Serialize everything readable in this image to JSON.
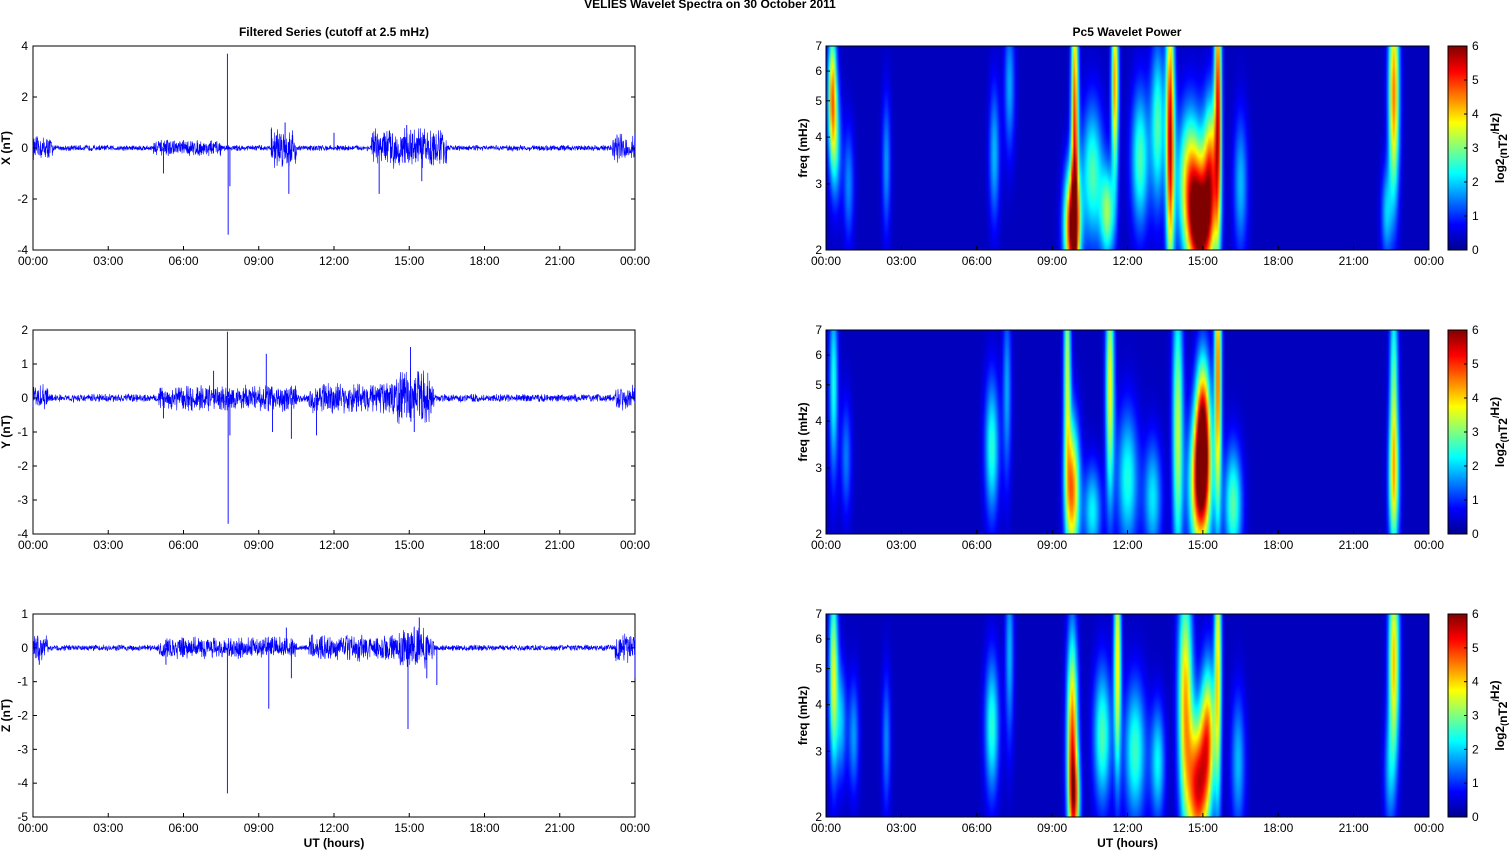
{
  "figure": {
    "title": "VELIES Wavelet Spectra on 30 October   2011",
    "left_title": "Filtered Series (cutoff at 2.5 mHz)",
    "right_title": "Pc5 Wavelet Power",
    "xlabel": "UT (hours)"
  },
  "chart_data": [
    {
      "type": "line",
      "title": "Filtered Series (cutoff at 2.5 mHz)",
      "xlabel": "",
      "ylabel": "X (nT)",
      "x_ticks": [
        "00:00",
        "03:00",
        "06:00",
        "09:00",
        "12:00",
        "15:00",
        "18:00",
        "21:00",
        "00:00"
      ],
      "xlim": [
        0,
        24
      ],
      "ylim": [
        -4,
        4
      ],
      "y_ticks": [
        -4,
        -2,
        0,
        2,
        4
      ],
      "color": "#0000ff",
      "noise_level": 0.09,
      "activity": [
        {
          "t0": 0.0,
          "t1": 0.8,
          "amp": 0.35
        },
        {
          "t0": 4.8,
          "t1": 7.5,
          "amp": 0.25
        },
        {
          "t0": 9.5,
          "t1": 10.5,
          "amp": 0.6
        },
        {
          "t0": 13.5,
          "t1": 16.5,
          "amp": 0.6
        },
        {
          "t0": 23.1,
          "t1": 24.0,
          "amp": 0.45
        }
      ],
      "spikes": [
        {
          "x": 7.75,
          "y": 3.7
        },
        {
          "x": 7.78,
          "y": -3.4
        },
        {
          "x": 7.85,
          "y": -1.5
        },
        {
          "x": 10.2,
          "y": -1.8
        },
        {
          "x": 10.05,
          "y": 1.0
        },
        {
          "x": 13.8,
          "y": -1.8
        },
        {
          "x": 14.9,
          "y": 0.9
        },
        {
          "x": 15.5,
          "y": -1.3
        },
        {
          "x": 5.2,
          "y": -1.0
        },
        {
          "x": 9.5,
          "y": 0.75
        },
        {
          "x": 12.0,
          "y": 0.6
        }
      ]
    },
    {
      "type": "heatmap",
      "title": "Pc5 Wavelet Power",
      "xlabel": "",
      "ylabel": "freq (mHz)",
      "x_ticks": [
        "00:00",
        "03:00",
        "06:00",
        "09:00",
        "12:00",
        "15:00",
        "18:00",
        "21:00",
        "00:00"
      ],
      "xlim": [
        0,
        24
      ],
      "ylim": [
        2,
        7
      ],
      "y_scale": "log",
      "y_ticks": [
        2,
        3,
        4,
        5,
        6,
        7
      ],
      "colorbar_label": "log2(nT2/Hz)",
      "colorbar_ticks": [
        0,
        1,
        2,
        3,
        4,
        5,
        6
      ],
      "clim": [
        0,
        6
      ],
      "blobs": [
        {
          "t": 0.25,
          "f": 5.2,
          "w": 0.12,
          "fw": 0.28,
          "v": 4.2
        },
        {
          "t": 0.4,
          "f": 3.8,
          "w": 0.15,
          "fw": 0.25,
          "v": 1.8
        },
        {
          "t": 0.9,
          "f": 3.0,
          "w": 0.15,
          "fw": 0.25,
          "v": 1.3
        },
        {
          "t": 2.4,
          "f": 3.4,
          "w": 0.12,
          "fw": 0.3,
          "v": 1.4
        },
        {
          "t": 6.7,
          "f": 3.6,
          "w": 0.15,
          "fw": 0.3,
          "v": 1.6
        },
        {
          "t": 7.3,
          "f": 5.5,
          "w": 0.15,
          "fw": 0.3,
          "v": 1.5
        },
        {
          "t": 9.8,
          "f": 2.3,
          "w": 0.22,
          "fw": 0.25,
          "v": 6.0
        },
        {
          "t": 9.9,
          "f": 4.5,
          "w": 0.1,
          "fw": 0.6,
          "v": 4.8
        },
        {
          "t": 10.6,
          "f": 3.2,
          "w": 0.3,
          "fw": 0.3,
          "v": 2.5
        },
        {
          "t": 11.2,
          "f": 2.5,
          "w": 0.2,
          "fw": 0.2,
          "v": 2.8
        },
        {
          "t": 11.5,
          "f": 5.5,
          "w": 0.1,
          "fw": 0.4,
          "v": 4.3
        },
        {
          "t": 12.5,
          "f": 3.5,
          "w": 0.25,
          "fw": 0.3,
          "v": 2.5
        },
        {
          "t": 13.2,
          "f": 4.3,
          "w": 0.2,
          "fw": 0.35,
          "v": 2.5
        },
        {
          "t": 13.7,
          "f": 4.0,
          "w": 0.12,
          "fw": 0.6,
          "v": 5.5
        },
        {
          "t": 14.5,
          "f": 3.1,
          "w": 0.35,
          "fw": 0.3,
          "v": 3.8
        },
        {
          "t": 14.9,
          "f": 2.3,
          "w": 0.35,
          "fw": 0.25,
          "v": 5.8
        },
        {
          "t": 15.3,
          "f": 3.3,
          "w": 0.2,
          "fw": 0.3,
          "v": 4.0
        },
        {
          "t": 15.6,
          "f": 5.0,
          "w": 0.1,
          "fw": 0.6,
          "v": 5.0
        },
        {
          "t": 16.5,
          "f": 3.0,
          "w": 0.2,
          "fw": 0.3,
          "v": 1.6
        },
        {
          "t": 22.6,
          "f": 5.2,
          "w": 0.15,
          "fw": 0.45,
          "v": 4.5
        },
        {
          "t": 22.3,
          "f": 2.5,
          "w": 0.15,
          "fw": 0.2,
          "v": 1.6
        }
      ]
    },
    {
      "type": "line",
      "title": "",
      "xlabel": "",
      "ylabel": "Y (nT)",
      "x_ticks": [
        "00:00",
        "03:00",
        "06:00",
        "09:00",
        "12:00",
        "15:00",
        "18:00",
        "21:00",
        "00:00"
      ],
      "xlim": [
        0,
        24
      ],
      "ylim": [
        -4,
        2
      ],
      "y_ticks": [
        -4,
        -3,
        -2,
        -1,
        0,
        1,
        2
      ],
      "color": "#0000ff",
      "noise_level": 0.09,
      "activity": [
        {
          "t0": 0.0,
          "t1": 0.6,
          "amp": 0.3
        },
        {
          "t0": 5.0,
          "t1": 10.5,
          "amp": 0.3
        },
        {
          "t0": 11.0,
          "t1": 16.0,
          "amp": 0.35
        },
        {
          "t0": 14.5,
          "t1": 15.8,
          "amp": 0.7
        },
        {
          "t0": 23.2,
          "t1": 24.0,
          "amp": 0.3
        }
      ],
      "spikes": [
        {
          "x": 7.75,
          "y": 1.95
        },
        {
          "x": 7.78,
          "y": -3.7
        },
        {
          "x": 7.85,
          "y": -1.1
        },
        {
          "x": 9.3,
          "y": 1.3
        },
        {
          "x": 9.55,
          "y": -1.0
        },
        {
          "x": 10.3,
          "y": -1.2
        },
        {
          "x": 11.3,
          "y": -1.1
        },
        {
          "x": 15.05,
          "y": 1.5
        },
        {
          "x": 15.2,
          "y": -1.0
        },
        {
          "x": 5.2,
          "y": -0.6
        },
        {
          "x": 7.2,
          "y": 0.8
        }
      ]
    },
    {
      "type": "heatmap",
      "title": "",
      "xlabel": "",
      "ylabel": "freq (mHz)",
      "x_ticks": [
        "00:00",
        "03:00",
        "06:00",
        "09:00",
        "12:00",
        "15:00",
        "18:00",
        "21:00",
        "00:00"
      ],
      "xlim": [
        0,
        24
      ],
      "ylim": [
        2,
        7
      ],
      "y_scale": "log",
      "y_ticks": [
        2,
        3,
        4,
        5,
        6,
        7
      ],
      "colorbar_label": "log2(nT2/Hz)",
      "colorbar_ticks": [
        0,
        1,
        2,
        3,
        4,
        5,
        6
      ],
      "clim": [
        0,
        6
      ],
      "blobs": [
        {
          "t": 0.3,
          "f": 5.0,
          "w": 0.12,
          "fw": 0.4,
          "v": 2.2
        },
        {
          "t": 0.8,
          "f": 3.2,
          "w": 0.15,
          "fw": 0.25,
          "v": 1.2
        },
        {
          "t": 6.6,
          "f": 3.4,
          "w": 0.2,
          "fw": 0.3,
          "v": 2.3
        },
        {
          "t": 7.2,
          "f": 4.8,
          "w": 0.12,
          "fw": 0.4,
          "v": 1.5
        },
        {
          "t": 9.8,
          "f": 2.6,
          "w": 0.2,
          "fw": 0.3,
          "v": 4.5
        },
        {
          "t": 9.6,
          "f": 5.5,
          "w": 0.1,
          "fw": 0.5,
          "v": 3.2
        },
        {
          "t": 10.6,
          "f": 2.3,
          "w": 0.25,
          "fw": 0.2,
          "v": 2.0
        },
        {
          "t": 11.3,
          "f": 5.0,
          "w": 0.12,
          "fw": 0.5,
          "v": 3.6
        },
        {
          "t": 12.0,
          "f": 2.8,
          "w": 0.3,
          "fw": 0.3,
          "v": 2.2
        },
        {
          "t": 13.0,
          "f": 2.5,
          "w": 0.25,
          "fw": 0.25,
          "v": 1.9
        },
        {
          "t": 14.0,
          "f": 3.8,
          "w": 0.15,
          "fw": 0.6,
          "v": 3.2
        },
        {
          "t": 14.9,
          "f": 2.7,
          "w": 0.3,
          "fw": 0.3,
          "v": 5.5
        },
        {
          "t": 15.0,
          "f": 3.9,
          "w": 0.2,
          "fw": 0.3,
          "v": 4.8
        },
        {
          "t": 15.6,
          "f": 5.3,
          "w": 0.1,
          "fw": 0.6,
          "v": 4.6
        },
        {
          "t": 16.2,
          "f": 2.4,
          "w": 0.25,
          "fw": 0.25,
          "v": 2.6
        },
        {
          "t": 22.6,
          "f": 4.8,
          "w": 0.12,
          "fw": 0.5,
          "v": 2.6
        },
        {
          "t": 22.6,
          "f": 2.7,
          "w": 0.15,
          "fw": 0.3,
          "v": 2.8
        }
      ]
    },
    {
      "type": "line",
      "title": "",
      "xlabel": "UT (hours)",
      "ylabel": "Z (nT)",
      "x_ticks": [
        "00:00",
        "03:00",
        "06:00",
        "09:00",
        "12:00",
        "15:00",
        "18:00",
        "21:00",
        "00:00"
      ],
      "xlim": [
        0,
        24
      ],
      "ylim": [
        -5,
        1
      ],
      "y_ticks": [
        -5,
        -4,
        -3,
        -2,
        -1,
        0,
        1
      ],
      "color": "#0000ff",
      "noise_level": 0.07,
      "activity": [
        {
          "t0": 0.0,
          "t1": 0.6,
          "amp": 0.3
        },
        {
          "t0": 5.0,
          "t1": 10.5,
          "amp": 0.25
        },
        {
          "t0": 11.0,
          "t1": 16.0,
          "amp": 0.3
        },
        {
          "t0": 14.6,
          "t1": 15.8,
          "amp": 0.5
        },
        {
          "t0": 23.2,
          "t1": 24.0,
          "amp": 0.35
        }
      ],
      "spikes": [
        {
          "x": 7.75,
          "y": -4.3
        },
        {
          "x": 9.4,
          "y": -1.8
        },
        {
          "x": 10.1,
          "y": 0.6
        },
        {
          "x": 10.3,
          "y": -0.9
        },
        {
          "x": 14.95,
          "y": -2.4
        },
        {
          "x": 15.4,
          "y": 0.9
        },
        {
          "x": 16.1,
          "y": -1.1
        },
        {
          "x": 15.7,
          "y": -0.9
        },
        {
          "x": 24.0,
          "y": -0.9
        },
        {
          "x": 0.25,
          "y": -0.5
        },
        {
          "x": 5.3,
          "y": -0.5
        }
      ]
    },
    {
      "type": "heatmap",
      "title": "",
      "xlabel": "UT (hours)",
      "ylabel": "freq (mHz)",
      "x_ticks": [
        "00:00",
        "03:00",
        "06:00",
        "09:00",
        "12:00",
        "15:00",
        "18:00",
        "21:00",
        "00:00"
      ],
      "xlim": [
        0,
        24
      ],
      "ylim": [
        2,
        7
      ],
      "y_scale": "log",
      "y_ticks": [
        2,
        3,
        4,
        5,
        6,
        7
      ],
      "colorbar_label": "log2(nT2/Hz)",
      "colorbar_ticks": [
        0,
        1,
        2,
        3,
        4,
        5,
        6
      ],
      "clim": [
        0,
        6
      ],
      "blobs": [
        {
          "t": 0.3,
          "f": 4.8,
          "w": 0.12,
          "fw": 0.4,
          "v": 3.5
        },
        {
          "t": 0.6,
          "f": 3.6,
          "w": 0.15,
          "fw": 0.25,
          "v": 1.6
        },
        {
          "t": 1.1,
          "f": 3.3,
          "w": 0.15,
          "fw": 0.25,
          "v": 1.4
        },
        {
          "t": 2.4,
          "f": 3.2,
          "w": 0.12,
          "fw": 0.3,
          "v": 1.3
        },
        {
          "t": 6.6,
          "f": 3.5,
          "w": 0.2,
          "fw": 0.3,
          "v": 2.3
        },
        {
          "t": 7.3,
          "f": 5.5,
          "w": 0.12,
          "fw": 0.4,
          "v": 1.6
        },
        {
          "t": 9.8,
          "f": 3.2,
          "w": 0.15,
          "fw": 0.45,
          "v": 4.8
        },
        {
          "t": 9.9,
          "f": 2.2,
          "w": 0.15,
          "fw": 0.2,
          "v": 3.0
        },
        {
          "t": 11.0,
          "f": 3.3,
          "w": 0.25,
          "fw": 0.3,
          "v": 2.5
        },
        {
          "t": 11.6,
          "f": 5.3,
          "w": 0.1,
          "fw": 0.5,
          "v": 3.8
        },
        {
          "t": 12.3,
          "f": 3.0,
          "w": 0.3,
          "fw": 0.3,
          "v": 2.4
        },
        {
          "t": 13.2,
          "f": 2.8,
          "w": 0.2,
          "fw": 0.25,
          "v": 2.0
        },
        {
          "t": 14.3,
          "f": 4.2,
          "w": 0.2,
          "fw": 0.5,
          "v": 4.0
        },
        {
          "t": 14.8,
          "f": 2.4,
          "w": 0.3,
          "fw": 0.3,
          "v": 5.2
        },
        {
          "t": 15.2,
          "f": 3.4,
          "w": 0.2,
          "fw": 0.3,
          "v": 3.8
        },
        {
          "t": 15.6,
          "f": 5.2,
          "w": 0.1,
          "fw": 0.6,
          "v": 3.8
        },
        {
          "t": 16.4,
          "f": 2.8,
          "w": 0.2,
          "fw": 0.3,
          "v": 1.6
        },
        {
          "t": 22.6,
          "f": 5.2,
          "w": 0.15,
          "fw": 0.45,
          "v": 4.0
        },
        {
          "t": 22.4,
          "f": 2.6,
          "w": 0.15,
          "fw": 0.25,
          "v": 1.2
        }
      ]
    }
  ]
}
